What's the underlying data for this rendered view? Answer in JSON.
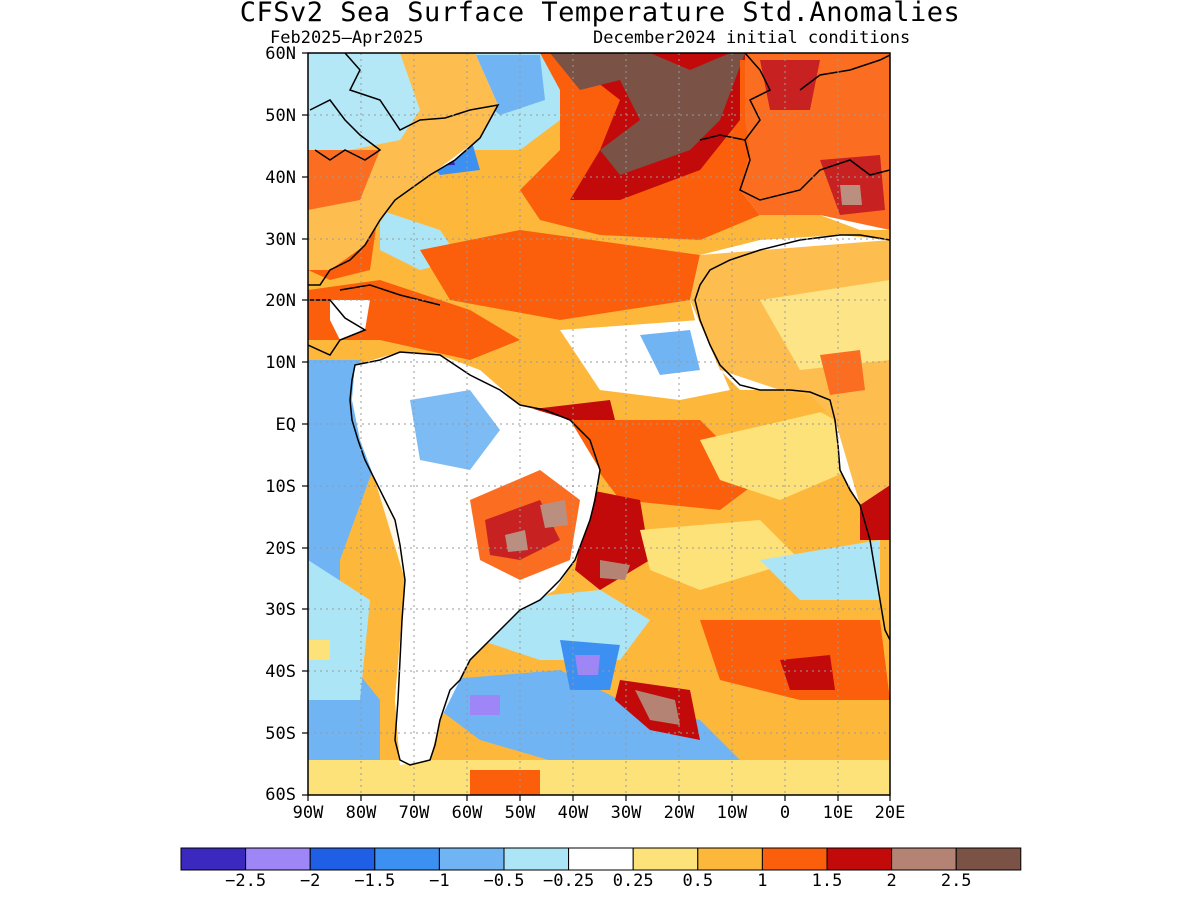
{
  "title": "CFSv2 Sea Surface Temperature Std.Anomalies",
  "subtitle_left": "Feb2025–Apr2025",
  "subtitle_right": "December2024 initial conditions",
  "lat_labels": [
    "60N",
    "50N",
    "40N",
    "30N",
    "20N",
    "10N",
    "EQ",
    "10S",
    "20S",
    "30S",
    "40S",
    "50S",
    "60S"
  ],
  "lon_labels": [
    "90W",
    "80W",
    "70W",
    "60W",
    "50W",
    "40W",
    "30W",
    "20W",
    "10W",
    "0",
    "10E",
    "20E"
  ],
  "colors": {
    "land": "#ffffff",
    "coast": "#000000",
    "grid": "#9a9a9a"
  },
  "colorbar": {
    "colors": [
      "#3a28bf",
      "#9f86f6",
      "#1f5fe6",
      "#3c90f1",
      "#70b4f4",
      "#ace6f6",
      "#ffffff",
      "#fde27a",
      "#fdb83c",
      "#fb5f0b",
      "#c20a0a",
      "#b48373",
      "#7b5246"
    ],
    "labels": [
      "−2.5",
      "−2",
      "−1.5",
      "−1",
      "−0.5",
      "−0.25",
      "0.25",
      "0.5",
      "1",
      "1.5",
      "2",
      "2.5"
    ]
  }
}
